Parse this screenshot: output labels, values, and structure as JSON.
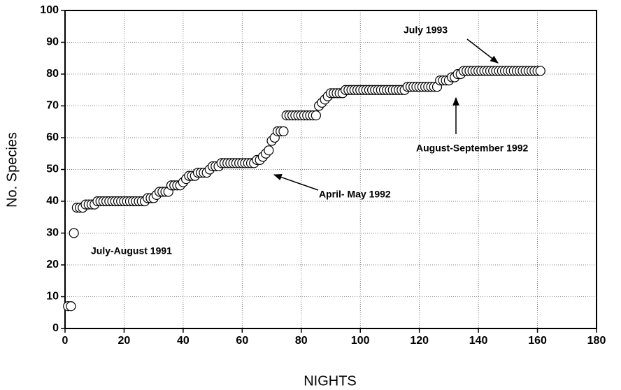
{
  "chart_data": {
    "type": "scatter",
    "xlabel": "NIGHTS",
    "ylabel": "No. Species",
    "annotations": [
      "July 1993",
      "August-September 1992",
      "April- May 1992",
      "July-August 1991"
    ],
    "xlim": [
      0,
      180
    ],
    "xticks": [
      0,
      20,
      40,
      60,
      80,
      100,
      120,
      140,
      160,
      180
    ],
    "ylim": [
      0,
      100
    ],
    "yticks": [
      0,
      10,
      20,
      30,
      40,
      50,
      60,
      70,
      80,
      90,
      100
    ],
    "grid": true,
    "color": "#ffffff",
    "x": [
      1,
      2,
      3,
      4,
      5,
      6,
      7,
      8,
      9,
      10,
      11,
      12,
      13,
      14,
      15,
      16,
      17,
      18,
      19,
      20,
      21,
      22,
      23,
      24,
      25,
      26,
      27,
      28,
      29,
      30,
      31,
      32,
      33,
      34,
      35,
      36,
      37,
      38,
      39,
      40,
      41,
      42,
      43,
      44,
      45,
      46,
      47,
      48,
      49,
      50,
      51,
      52,
      53,
      54,
      55,
      56,
      57,
      58,
      59,
      60,
      61,
      62,
      63,
      64,
      65,
      66,
      67,
      68,
      69,
      70,
      71,
      72,
      73,
      74,
      75,
      76,
      77,
      78,
      79,
      80,
      81,
      82,
      83,
      84,
      85,
      86,
      87,
      88,
      89,
      90,
      91,
      92,
      93,
      94,
      95,
      96,
      97,
      98,
      99,
      100,
      101,
      102,
      103,
      104,
      105,
      106,
      107,
      108,
      109,
      110,
      111,
      112,
      113,
      114,
      115,
      116,
      117,
      118,
      119,
      120,
      121,
      122,
      123,
      124,
      125,
      126,
      127,
      128,
      129,
      130,
      131,
      132,
      133,
      134,
      135,
      136,
      137,
      138,
      139,
      140,
      141,
      142,
      143,
      144,
      145,
      146,
      147,
      148,
      149,
      150,
      151,
      152,
      153,
      154,
      155,
      156,
      157,
      158,
      159,
      160,
      161
    ],
    "values": [
      7,
      7,
      30,
      38,
      38,
      38,
      39,
      39,
      39,
      39,
      40,
      40,
      40,
      40,
      40,
      40,
      40,
      40,
      40,
      40,
      40,
      40,
      40,
      40,
      40,
      40,
      40,
      41,
      41,
      41,
      42,
      43,
      43,
      43,
      43,
      45,
      45,
      45,
      45,
      46,
      47,
      48,
      48,
      48,
      49,
      49,
      49,
      49,
      50,
      51,
      51,
      51,
      52,
      52,
      52,
      52,
      52,
      52,
      52,
      52,
      52,
      52,
      52,
      52,
      53,
      53,
      54,
      55,
      56,
      59,
      60,
      62,
      62,
      62,
      67,
      67,
      67,
      67,
      67,
      67,
      67,
      67,
      67,
      67,
      67,
      70,
      71,
      72,
      73,
      74,
      74,
      74,
      74,
      74,
      75,
      75,
      75,
      75,
      75,
      75,
      75,
      75,
      75,
      75,
      75,
      75,
      75,
      75,
      75,
      75,
      75,
      75,
      75,
      75,
      75,
      76,
      76,
      76,
      76,
      76,
      76,
      76,
      76,
      76,
      76,
      76,
      78,
      78,
      78,
      78,
      79,
      79,
      80,
      80,
      81,
      81,
      81,
      81,
      81,
      81,
      81,
      81,
      81,
      81,
      81,
      81,
      81,
      81,
      81,
      81,
      81,
      81,
      81,
      81,
      81,
      81,
      81,
      81,
      81,
      81,
      81
    ]
  }
}
